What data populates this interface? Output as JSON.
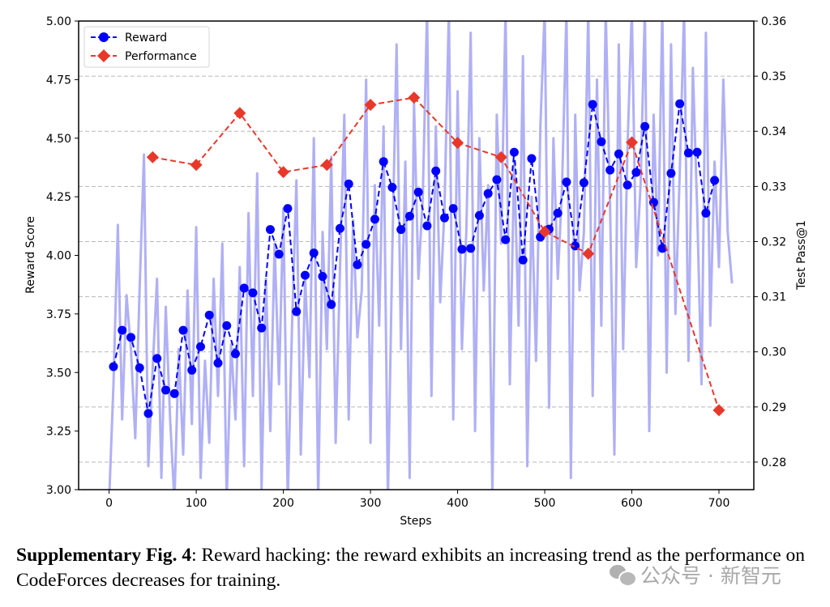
{
  "chart_data": {
    "type": "line",
    "title": "",
    "xlabel": "Steps",
    "ylabel_left": "Reward Score",
    "ylabel_right": "Test Pass@1",
    "xlim": [
      -35,
      740
    ],
    "ylim_left": [
      3.0,
      5.0
    ],
    "ylim_right": [
      0.275,
      0.36
    ],
    "x_ticks": [
      0,
      100,
      200,
      300,
      400,
      500,
      600,
      700
    ],
    "x_tick_labels": [
      "0",
      "100",
      "200",
      "300",
      "400",
      "500",
      "600",
      "700"
    ],
    "y_left_ticks": [
      3.0,
      3.25,
      3.5,
      3.75,
      4.0,
      4.25,
      4.5,
      4.75,
      5.0
    ],
    "y_left_tick_labels": [
      "3.00",
      "3.25",
      "3.50",
      "3.75",
      "4.00",
      "4.25",
      "4.50",
      "4.75",
      "5.00"
    ],
    "y_right_ticks": [
      0.28,
      0.29,
      0.3,
      0.31,
      0.32,
      0.33,
      0.34,
      0.35,
      0.36
    ],
    "y_right_tick_labels": [
      "0.28",
      "0.29",
      "0.30",
      "0.31",
      "0.32",
      "0.33",
      "0.34",
      "0.35",
      "0.36"
    ],
    "grid": "horizontal dashed, aligned to right axis",
    "legend_position": "top-left",
    "series": [
      {
        "name": "Reward (raw)",
        "axis": "left",
        "style": "solid, light translucent",
        "color": "#b0b0f5",
        "in_legend": false,
        "x_step": 5,
        "x_start": 0,
        "values": [
          2.95,
          3.45,
          4.13,
          3.3,
          3.83,
          3.6,
          3.22,
          3.85,
          4.43,
          3.1,
          3.52,
          3.9,
          3.05,
          3.78,
          3.3,
          2.95,
          3.6,
          3.15,
          3.85,
          3.28,
          4.12,
          3.05,
          3.55,
          3.2,
          3.9,
          3.4,
          4.05,
          2.95,
          3.62,
          3.3,
          3.95,
          3.1,
          4.18,
          3.4,
          4.35,
          3.0,
          3.9,
          3.25,
          4.05,
          3.45,
          4.2,
          2.95,
          3.7,
          4.32,
          3.15,
          3.9,
          3.48,
          4.5,
          2.95,
          4.1,
          3.6,
          4.42,
          3.2,
          3.95,
          4.6,
          3.3,
          4.15,
          3.65,
          3.85,
          4.75,
          3.2,
          4.3,
          3.7,
          4.55,
          2.95,
          4.0,
          4.9,
          3.6,
          4.4,
          3.05,
          4.65,
          3.9,
          4.25,
          5.05,
          3.4,
          4.55,
          3.8,
          4.2,
          5.05,
          3.3,
          4.7,
          3.6,
          4.1,
          4.95,
          3.25,
          4.5,
          3.85,
          4.3,
          2.98,
          4.6,
          4.05,
          5.05,
          3.45,
          4.4,
          3.7,
          4.85,
          3.1,
          4.25,
          3.55,
          4.55,
          5.05,
          3.35,
          4.5,
          3.9,
          4.3,
          5.05,
          3.05,
          4.6,
          3.85,
          4.1,
          5.05,
          3.4,
          4.75,
          3.7,
          5.05,
          4.2,
          3.15,
          4.9,
          3.6,
          4.45,
          5.05,
          3.95,
          4.3,
          5.05,
          3.25,
          4.6,
          4.0,
          5.05,
          3.5,
          4.9,
          3.75,
          4.35,
          5.05,
          3.55,
          4.8,
          4.2,
          3.45,
          4.95,
          3.7,
          4.4,
          3.95,
          4.75,
          4.1,
          3.88
        ]
      },
      {
        "name": "Reward",
        "axis": "left",
        "style": "dashed, circle markers",
        "color": "#0000ff",
        "in_legend": true,
        "x": [
          5,
          15,
          25,
          35,
          45,
          55,
          65,
          75,
          85,
          95,
          105,
          115,
          125,
          135,
          145,
          155,
          165,
          175,
          185,
          195,
          205,
          215,
          225,
          235,
          245,
          255,
          265,
          275,
          285,
          295,
          305,
          315,
          325,
          335,
          345,
          355,
          365,
          375,
          385,
          395,
          405,
          415,
          425,
          435,
          445,
          455,
          465,
          475,
          485,
          495,
          505,
          515,
          525,
          535,
          545,
          555,
          565,
          575,
          585,
          595,
          605,
          615,
          625,
          635,
          645,
          655,
          665,
          675,
          685,
          695
        ],
        "values": [
          3.525,
          3.68,
          3.65,
          3.52,
          3.325,
          3.56,
          3.425,
          3.41,
          3.68,
          3.51,
          3.61,
          3.745,
          3.54,
          3.7,
          3.58,
          3.86,
          3.84,
          3.69,
          4.11,
          4.005,
          4.2,
          3.76,
          3.915,
          4.01,
          3.91,
          3.79,
          4.115,
          4.305,
          3.96,
          4.047,
          4.154,
          4.4,
          4.29,
          4.11,
          4.167,
          4.27,
          4.126,
          4.36,
          4.16,
          4.2,
          4.026,
          4.03,
          4.17,
          4.264,
          4.323,
          4.067,
          4.44,
          3.98,
          4.413,
          4.078,
          4.112,
          4.18,
          4.313,
          4.04,
          4.31,
          4.644,
          4.485,
          4.364,
          4.433,
          4.3,
          4.354,
          4.55,
          4.226,
          4.03,
          4.35,
          4.647,
          4.437,
          4.44,
          4.18,
          4.32
        ]
      },
      {
        "name": "Performance",
        "axis": "right",
        "style": "dashed, diamond markers",
        "color": "#e8382a",
        "in_legend": true,
        "x": [
          50,
          100,
          150,
          200,
          250,
          300,
          350,
          400,
          450,
          500,
          550,
          600,
          700
        ],
        "values": [
          0.3353,
          0.3339,
          0.3433,
          0.3326,
          0.3339,
          0.3448,
          0.3461,
          0.3379,
          0.3353,
          0.3218,
          0.3178,
          0.338,
          0.2894
        ]
      }
    ]
  },
  "caption": {
    "label": "Supplementary Fig. 4",
    "text": ": Reward hacking: the reward exhibits an increasing trend as the performance on CodeForces decreases for training."
  },
  "watermark": {
    "icon": "wechat-icon",
    "text": "公众号 · 新智元"
  }
}
